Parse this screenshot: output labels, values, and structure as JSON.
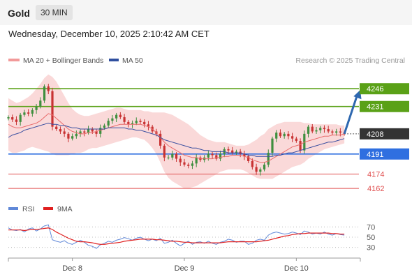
{
  "header": {
    "asset": "Gold",
    "timeframe": "30 MIN",
    "datetime": "Wednesday, December 10, 2025 2:10:42 AM CET"
  },
  "research_note": "Research © 2025 Trading Central",
  "colors": {
    "resistance": "#5aa117",
    "support": "#2f6fe0",
    "support_minor": "#e05050",
    "last": "#333333",
    "arrow": "#2e68b0",
    "ma20": "#e86a6a",
    "ma50": "#3a4fa0",
    "band": "#f8c9c9",
    "candle_up": "#3f8f3f",
    "candle_down": "#c83232",
    "rsi": "#6088d8",
    "rsi_ma": "#e02020"
  },
  "chart_data": [
    {
      "type": "line",
      "name": "price",
      "legend": [
        {
          "label": "MA 20 + Bollinger Bands",
          "color": "#f29a9a"
        },
        {
          "label": "MA 50",
          "color": "#2f4f9f"
        }
      ],
      "x_ticks": [
        {
          "label": "Dec 8",
          "x": 16
        },
        {
          "label": "Dec 9",
          "x": 44
        },
        {
          "label": "Dec 10",
          "x": 72
        }
      ],
      "x_range": [
        0,
        82
      ],
      "ylim": [
        4155,
        4262
      ],
      "levels": [
        {
          "label": "4246",
          "value": 4246,
          "kind": "resistance"
        },
        {
          "label": "4231",
          "value": 4231,
          "kind": "resistance"
        },
        {
          "label": "4208",
          "value": 4208,
          "kind": "last"
        },
        {
          "label": "4191",
          "value": 4191,
          "kind": "support"
        },
        {
          "label": "4174",
          "value": 4174,
          "kind": "support_minor"
        },
        {
          "label": "4162",
          "value": 4162,
          "kind": "support_minor"
        }
      ],
      "closes": [
        4222,
        4220,
        4218,
        4224,
        4226,
        4225,
        4228,
        4231,
        4236,
        4248,
        4244,
        4214,
        4212,
        4210,
        4208,
        4204,
        4206,
        4208,
        4210,
        4209,
        4212,
        4210,
        4208,
        4213,
        4215,
        4219,
        4221,
        4224,
        4222,
        4218,
        4216,
        4217,
        4219,
        4218,
        4216,
        4214,
        4210,
        4208,
        4198,
        4188,
        4188,
        4191,
        4187,
        4184,
        4182,
        4181,
        4183,
        4188,
        4186,
        4188,
        4191,
        4190,
        4187,
        4191,
        4195,
        4194,
        4192,
        4193,
        4191,
        4189,
        4185,
        4180,
        4176,
        4178,
        4182,
        4192,
        4204,
        4209,
        4206,
        4208,
        4206,
        4204,
        4202,
        4194,
        4208,
        4214,
        4210,
        4211,
        4213,
        4212,
        4210,
        4209,
        4210,
        4209,
        4208
      ],
      "ma20": [
        4216,
        4214,
        4213,
        4213,
        4214,
        4215,
        4216,
        4217,
        4219,
        4222,
        4225,
        4224,
        4221,
        4218,
        4215,
        4212,
        4210,
        4209,
        4208,
        4208,
        4209,
        4209,
        4210,
        4211,
        4212,
        4213,
        4214,
        4215,
        4216,
        4216,
        4216,
        4216,
        4216,
        4216,
        4215,
        4214,
        4212,
        4209,
        4205,
        4201,
        4198,
        4196,
        4194,
        4192,
        4190,
        4189,
        4188,
        4188,
        4187,
        4187,
        4187,
        4187,
        4188,
        4188,
        4189,
        4189,
        4190,
        4190,
        4190,
        4189,
        4188,
        4186,
        4185,
        4184,
        4184,
        4185,
        4187,
        4189,
        4191,
        4193,
        4195,
        4197,
        4198,
        4199,
        4201,
        4202,
        4203,
        4204,
        4205,
        4206,
        4206,
        4207,
        4207,
        4207,
        4208
      ],
      "ma50": [
        4205,
        4207,
        4208,
        4209,
        4211,
        4212,
        4213,
        4214,
        4215,
        4216,
        4217,
        4216,
        4216,
        4215,
        4215,
        4214,
        4213,
        4213,
        4212,
        4212,
        4212,
        4212,
        4212,
        4212,
        4212,
        4213,
        4213,
        4213,
        4213,
        4213,
        4212,
        4212,
        4211,
        4211,
        4210,
        4209,
        4208,
        4207,
        4205,
        4203,
        4202,
        4201,
        4200,
        4199,
        4198,
        4197,
        4196,
        4196,
        4195,
        4194,
        4194,
        4193,
        4193,
        4193,
        4193,
        4192,
        4192,
        4192,
        4192,
        4191,
        4190,
        4190,
        4189,
        4189,
        4189,
        4189,
        4189,
        4190,
        4190,
        4191,
        4192,
        4192,
        4193,
        4194,
        4195,
        4196,
        4197,
        4198,
        4199,
        4200,
        4201,
        4201,
        4202,
        4203,
        4204
      ],
      "band_upper": [
        4238,
        4236,
        4234,
        4235,
        4237,
        4239,
        4242,
        4246,
        4250,
        4255,
        4258,
        4256,
        4252,
        4246,
        4240,
        4234,
        4229,
        4226,
        4224,
        4223,
        4223,
        4224,
        4225,
        4226,
        4227,
        4228,
        4229,
        4230,
        4230,
        4229,
        4228,
        4228,
        4228,
        4228,
        4227,
        4227,
        4226,
        4226,
        4226,
        4226,
        4225,
        4224,
        4222,
        4220,
        4218,
        4216,
        4213,
        4210,
        4207,
        4205,
        4203,
        4202,
        4201,
        4201,
        4201,
        4200,
        4199,
        4198,
        4198,
        4198,
        4199,
        4201,
        4203,
        4206,
        4208,
        4212,
        4214,
        4216,
        4217,
        4218,
        4218,
        4218,
        4218,
        4218,
        4217,
        4217,
        4216,
        4216,
        4216,
        4216,
        4216,
        4216,
        4216,
        4215,
        4215
      ],
      "band_lower": [
        4194,
        4192,
        4192,
        4193,
        4194,
        4196,
        4197,
        4196,
        4195,
        4194,
        4193,
        4191,
        4190,
        4190,
        4190,
        4190,
        4191,
        4192,
        4192,
        4193,
        4195,
        4196,
        4196,
        4197,
        4198,
        4199,
        4200,
        4201,
        4202,
        4203,
        4204,
        4205,
        4205,
        4204,
        4203,
        4200,
        4196,
        4191,
        4184,
        4176,
        4171,
        4168,
        4166,
        4164,
        4162,
        4162,
        4163,
        4164,
        4166,
        4168,
        4170,
        4172,
        4174,
        4176,
        4177,
        4178,
        4178,
        4178,
        4178,
        4177,
        4175,
        4173,
        4171,
        4170,
        4170,
        4170,
        4170,
        4172,
        4174,
        4176,
        4178,
        4180,
        4181,
        4182,
        4184,
        4187,
        4189,
        4191,
        4193,
        4195,
        4196,
        4197,
        4198,
        4199,
        4200
      ],
      "forecast_arrow": {
        "from": [
          84,
          4208
        ],
        "to": [
          88,
          4245
        ]
      }
    },
    {
      "type": "line",
      "name": "rsi",
      "legend": [
        {
          "label": "RSI",
          "color": "#6088d8"
        },
        {
          "label": "9MA",
          "color": "#e02020"
        }
      ],
      "ylim": [
        20,
        80
      ],
      "y_ticks": [
        {
          "label": "70",
          "value": 70
        },
        {
          "label": "50",
          "value": 50
        },
        {
          "label": "30",
          "value": 30
        }
      ],
      "rsi": [
        68,
        64,
        63,
        65,
        60,
        66,
        68,
        62,
        66,
        72,
        74,
        45,
        42,
        40,
        43,
        38,
        36,
        40,
        44,
        40,
        34,
        32,
        28,
        35,
        38,
        42,
        40,
        44,
        46,
        49,
        47,
        44,
        48,
        50,
        46,
        43,
        46,
        43,
        48,
        38,
        40,
        44,
        38,
        33,
        38,
        42,
        36,
        40,
        41,
        38,
        42,
        38,
        36,
        40,
        42,
        46,
        44,
        40,
        42,
        42,
        36,
        38,
        44,
        46,
        44,
        54,
        58,
        60,
        58,
        56,
        57,
        60,
        58,
        55,
        62,
        60,
        56,
        58,
        56,
        60,
        56,
        54,
        57,
        55,
        54
      ],
      "ma9": [
        64,
        64,
        64,
        64,
        63,
        64,
        65,
        65,
        66,
        67,
        68,
        65,
        60,
        56,
        52,
        48,
        45,
        42,
        41,
        41,
        40,
        39,
        37,
        36,
        36,
        37,
        38,
        39,
        40,
        42,
        43,
        44,
        45,
        46,
        46,
        46,
        46,
        45,
        45,
        44,
        43,
        42,
        42,
        41,
        40,
        40,
        39,
        39,
        39,
        39,
        39,
        39,
        39,
        39,
        40,
        41,
        41,
        41,
        41,
        41,
        41,
        41,
        41,
        42,
        43,
        44,
        46,
        48,
        50,
        52,
        53,
        55,
        56,
        57,
        57,
        58,
        58,
        58,
        58,
        58,
        58,
        57,
        57,
        56,
        56
      ]
    }
  ]
}
